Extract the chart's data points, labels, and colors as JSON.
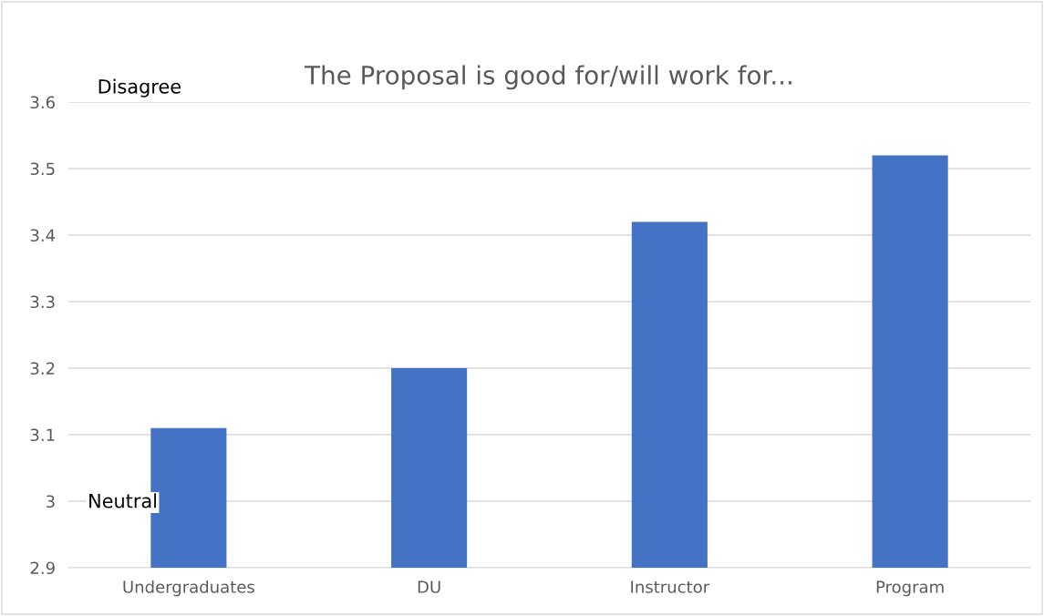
{
  "chart_data": {
    "type": "bar",
    "title": "The Proposal is good for/will work for...",
    "categories": [
      "Undergraduates",
      "DU",
      "Instructor",
      "Program"
    ],
    "values": [
      3.11,
      3.2,
      3.42,
      3.52
    ],
    "color": "#4472c4",
    "ylim": [
      2.9,
      3.6
    ],
    "yticks": [
      2.9,
      3,
      3.1,
      3.2,
      3.3,
      3.4,
      3.5,
      3.6
    ],
    "grid": "y",
    "annotations": [
      "Disagree",
      "Neutral"
    ]
  }
}
